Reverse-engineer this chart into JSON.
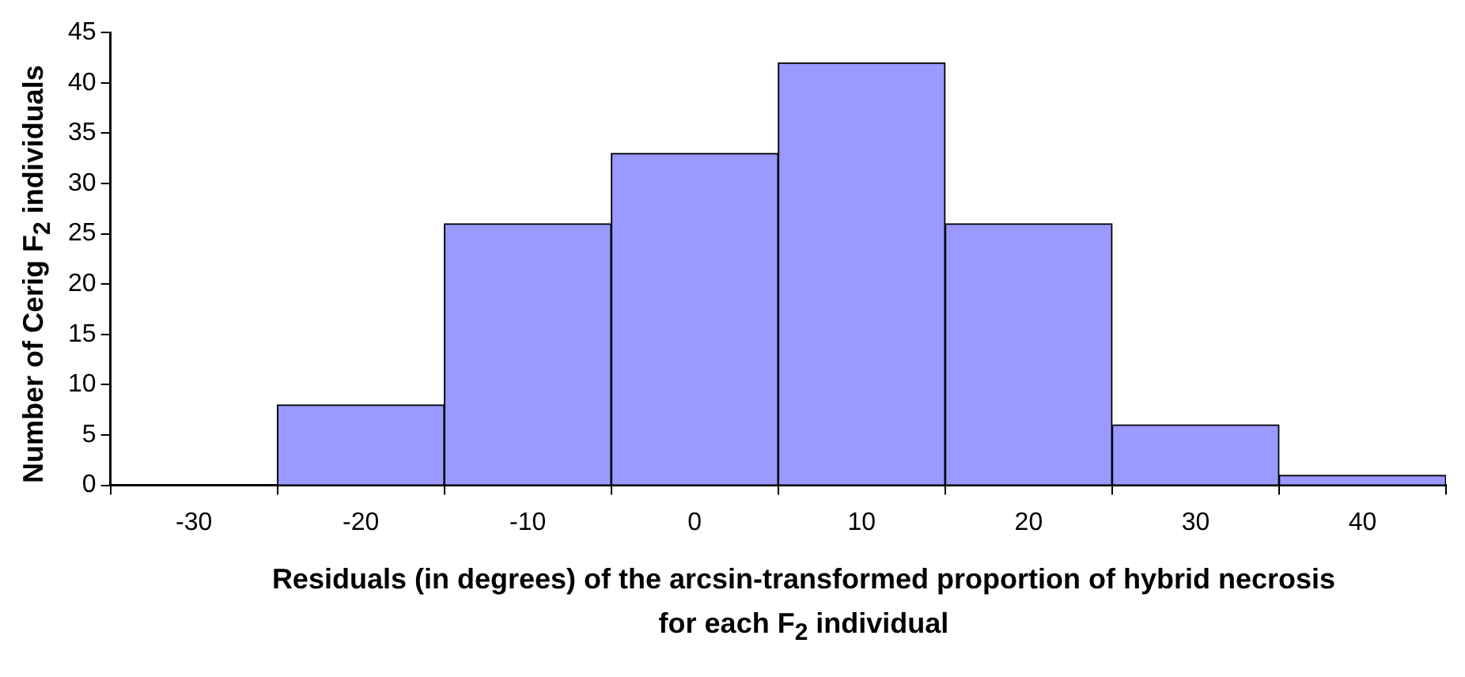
{
  "chart_data": {
    "type": "histogram",
    "xlabel": "Residuals (in degrees) of the arcsin-transformed proportion of hybrid necrosis for each F$_{2}$ individual",
    "ylabel": "Number of Cerig F$_{2}$ individuals",
    "bins": [
      -35,
      -25,
      -15,
      -5,
      5,
      15,
      25,
      35,
      45
    ],
    "values": [
      0,
      8,
      26,
      33,
      42,
      26,
      6,
      1
    ],
    "color": "#9999ff",
    "xlim": [
      -35,
      45
    ],
    "xticks": [
      -30,
      -20,
      -10,
      0,
      10,
      20,
      30,
      40
    ],
    "ylim": [
      0,
      45
    ],
    "yticks": [
      0,
      5,
      10,
      15,
      20,
      25,
      30,
      35,
      40,
      45
    ],
    "grid": false,
    "legend": false
  }
}
